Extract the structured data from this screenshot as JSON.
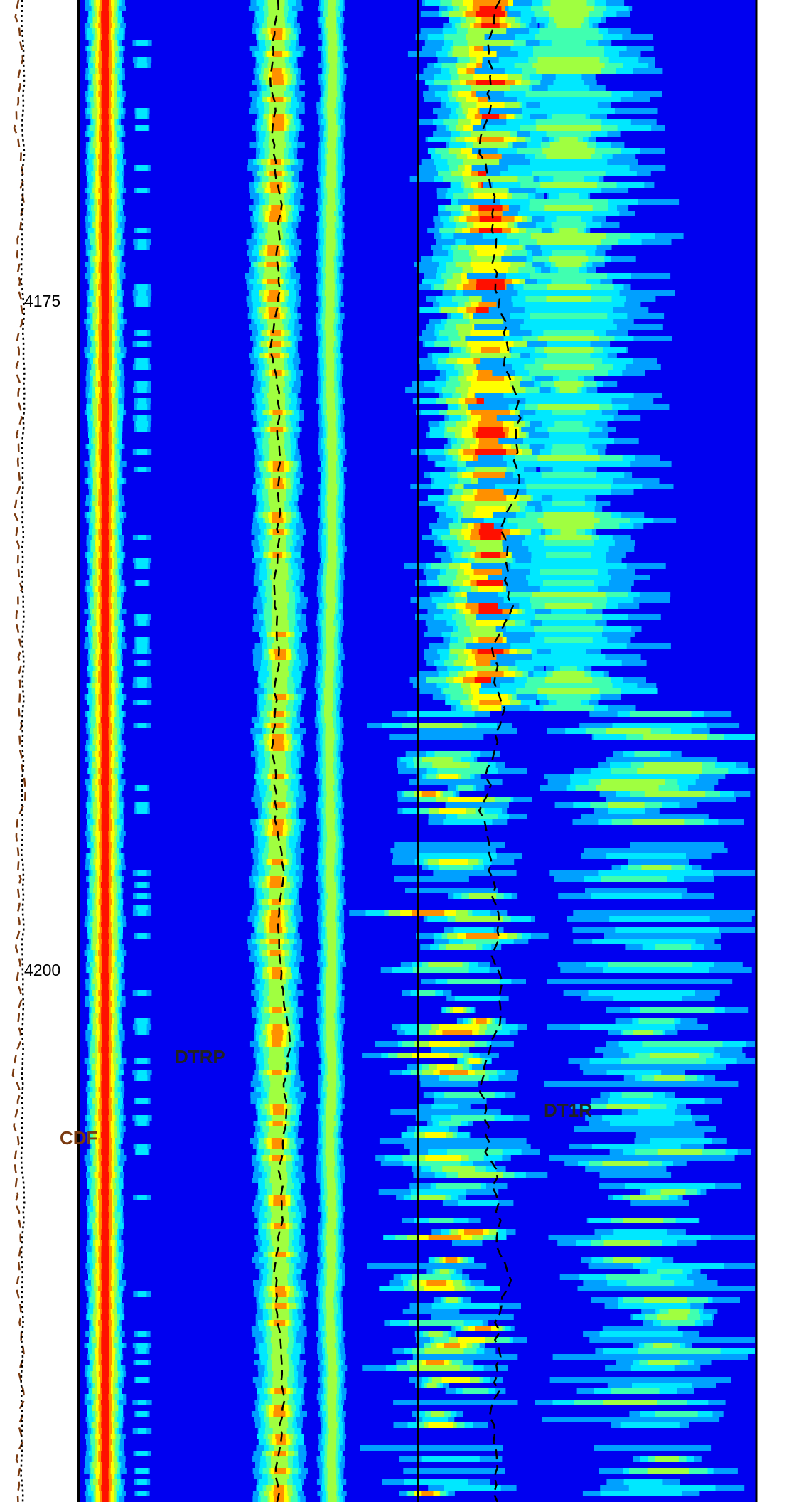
{
  "depth_track": {
    "labels": [
      "4175",
      "4200"
    ]
  },
  "curve_labels": {
    "track1": "DTRP",
    "track2": "DT1R",
    "depth": "CDF"
  }
}
